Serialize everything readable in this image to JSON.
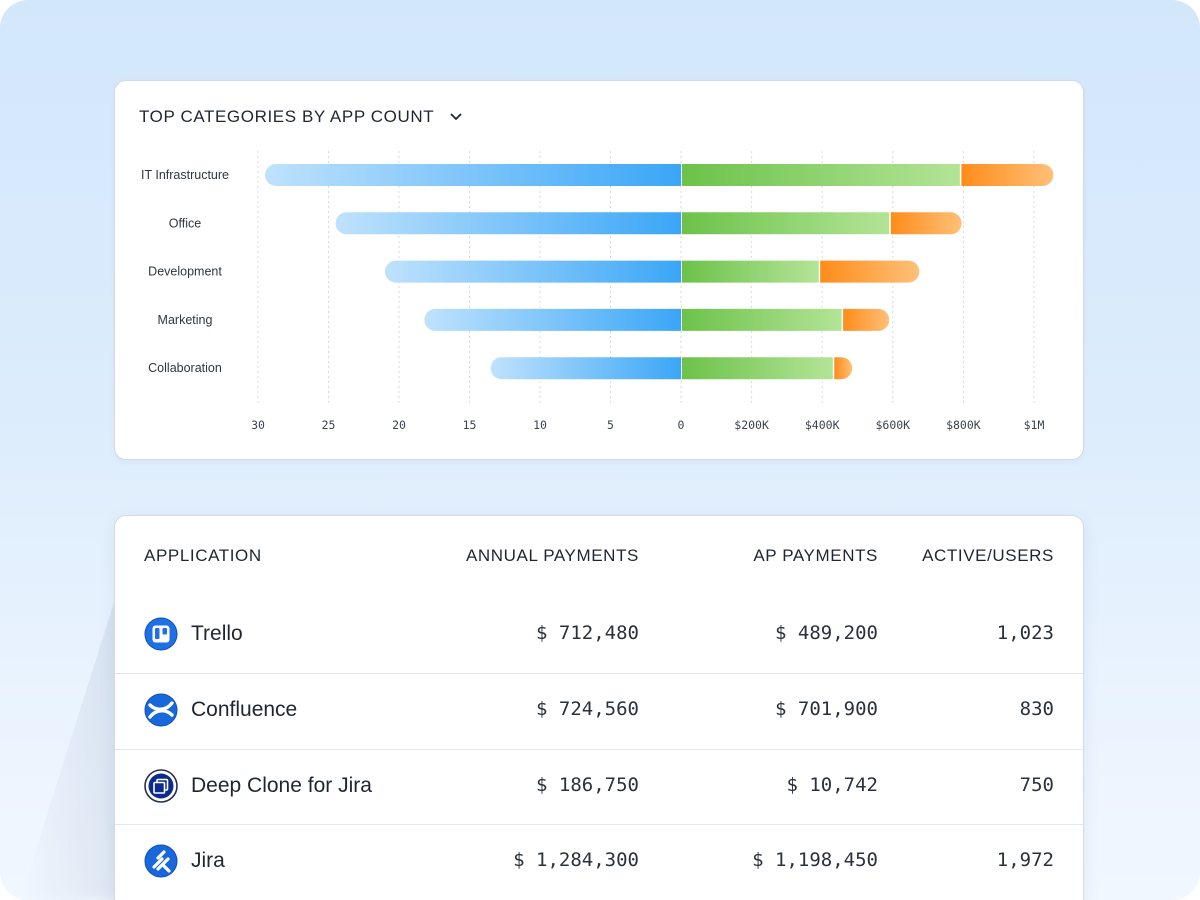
{
  "chart": {
    "title": "TOP CATEGORIES BY APP COUNT"
  },
  "chart_data": {
    "type": "bar",
    "categories": [
      "IT Infrastructure",
      "Office",
      "Development",
      "Marketing",
      "Collaboration"
    ],
    "series": [
      {
        "values": [
          29.5,
          24.5,
          21,
          18.2,
          13.5
        ]
      },
      {
        "values": [
          790000,
          590000,
          390000,
          455000,
          430000
        ]
      },
      {
        "values": [
          265000,
          205000,
          285000,
          135000,
          55000
        ]
      }
    ],
    "left_axis": {
      "ticks": [
        "30",
        "25",
        "20",
        "15",
        "10",
        "5",
        "0"
      ],
      "range": [
        0,
        30
      ]
    },
    "right_axis": {
      "ticks": [
        "$200K",
        "$400K",
        "$600K",
        "$800K",
        "$1M"
      ],
      "range": [
        0,
        1000000
      ]
    },
    "grid": true,
    "colors": {
      "left_bar": "#3aa6f6",
      "right_bar": "#6cc24a",
      "right_bar_extra": "#ff8c1a"
    }
  },
  "table": {
    "headers": {
      "application": "APPLICATION",
      "annual": "ANNUAL PAYMENTS",
      "ap": "AP PAYMENTS",
      "users": "ACTIVE/USERS"
    },
    "rows": [
      {
        "name": "Trello",
        "icon": "trello-icon",
        "annual": "$ 712,480",
        "ap": "$ 489,200",
        "users": "1,023"
      },
      {
        "name": "Confluence",
        "icon": "confluence-icon",
        "annual": "$ 724,560",
        "ap": "$ 701,900",
        "users": "830"
      },
      {
        "name": "Deep Clone for Jira",
        "icon": "deep-clone-icon",
        "annual": "$ 186,750",
        "ap": "$ 10,742",
        "users": "750"
      },
      {
        "name": "Jira",
        "icon": "jira-icon",
        "annual": "$ 1,284,300",
        "ap": "$ 1,198,450",
        "users": "1,972"
      }
    ]
  }
}
